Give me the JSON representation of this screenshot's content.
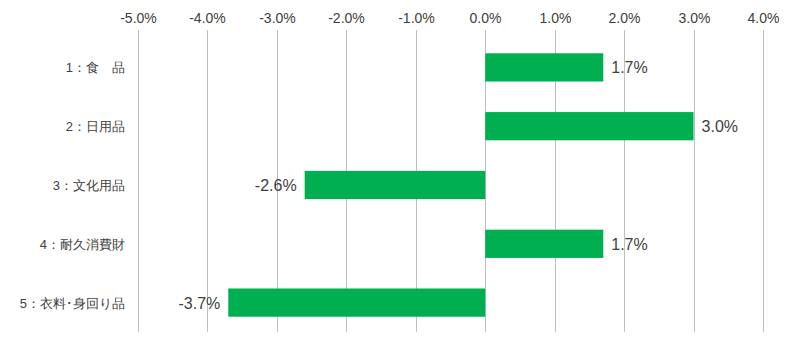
{
  "chart_data": {
    "type": "bar",
    "orientation": "horizontal",
    "categories": [
      "1：食　品",
      "2：日用品",
      "3：文化用品",
      "4：耐久消費財",
      "5：衣料･身回り品"
    ],
    "values": [
      1.7,
      3.0,
      -2.6,
      1.7,
      -3.7
    ],
    "value_labels": [
      "1.7%",
      "3.0%",
      "-2.6%",
      "1.7%",
      "-3.7%"
    ],
    "color": "#00b050",
    "xlim": [
      -5,
      4
    ],
    "xticks": [
      {
        "value": -5,
        "label": "-5.0%"
      },
      {
        "value": -4,
        "label": "-4.0%"
      },
      {
        "value": -3,
        "label": "-3.0%"
      },
      {
        "value": -2,
        "label": "-2.0%"
      },
      {
        "value": -1,
        "label": "-1.0%"
      },
      {
        "value": 0,
        "label": "0.0%"
      },
      {
        "value": 1,
        "label": "1.0%"
      },
      {
        "value": 2,
        "label": "2.0%"
      },
      {
        "value": 3,
        "label": "3.0%"
      },
      {
        "value": 4,
        "label": "4.0%"
      }
    ],
    "grid": true,
    "data_labels": true
  }
}
